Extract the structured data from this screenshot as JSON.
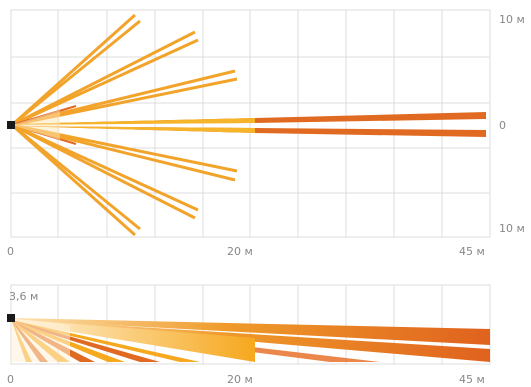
{
  "colors": {
    "grid": "#dcdcdc",
    "label": "#888888",
    "sensor": "#1a1a1a",
    "beam_light": "#f5b42a",
    "beam_mid": "#f0a020",
    "beam_dark": "#e06a22",
    "beam_fade": "#fde6b8"
  },
  "top_view": {
    "labels": {
      "x_start": "0",
      "x_mid": "20 м",
      "x_end": "45 м",
      "y_top": "10 м",
      "y_center": "0",
      "y_bottom": "10 м"
    }
  },
  "side_view": {
    "labels": {
      "height": "3,6 м",
      "x_start": "0",
      "x_mid": "20 м",
      "x_end": "45 м"
    }
  }
}
